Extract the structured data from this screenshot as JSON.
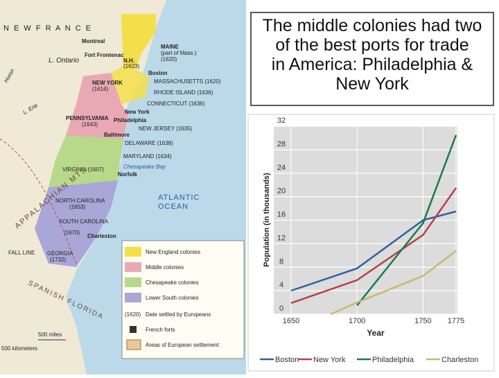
{
  "title": "The middle colonies had two of the best ports for trade in America: Philadelphia & New York",
  "map": {
    "labels": [
      "N E W   F R A N C E",
      "Montreal",
      "Fort Frontenac",
      "L. Ontario",
      "MAINE",
      "(part of Mass.)",
      "(1620)",
      "N.H.",
      "(1623)",
      "Boston",
      "MASSACHUSETTS (1620)",
      "NEW YORK",
      "(1614)",
      "RHODE ISLAND (1636)",
      "CONNECTICUT (1636)",
      "New York",
      "PENNSYLVANIA",
      "(1643)",
      "Philadelphia",
      "NEW JERSEY (1635)",
      "Baltimore",
      "DELAWARE (1638)",
      "MARYLAND (1634)",
      "VIRGINIA (1607)",
      "Chesapeake Bay",
      "Norfolk",
      "NORTH CAROLINA",
      "(1653)",
      "SOUTH CAROLINA",
      "(1670)",
      "Charleston",
      "GEORGIA",
      "(1732)",
      "ATLANTIC",
      "OCEAN",
      "APPALACHIAN MTS.",
      "SPANISH FLORIDA",
      "FALL LINE",
      "L. Erie",
      "Huron",
      "500 miles",
      "500 kilometers"
    ],
    "legend": [
      "New England colonies",
      "Middle colonies",
      "Chesapeake colonies",
      "Lower South colonies",
      "(1620)",
      "Date settled by Europeans",
      "French forts",
      "Areas of European settlement"
    ]
  },
  "chart_data": {
    "type": "line",
    "x_label": "Year",
    "y_label": "Population (in thousands)",
    "xlim": [
      1650,
      1775
    ],
    "xticks": [
      1650,
      1700,
      1750,
      1775
    ],
    "ylim": [
      0,
      32
    ],
    "yticks": [
      0,
      4,
      8,
      12,
      16,
      20,
      24,
      28,
      32
    ],
    "grid": true,
    "series": [
      {
        "name": "Boston",
        "color": "#2e5fa0",
        "x": [
          1650,
          1700,
          1750,
          1775
        ],
        "values": [
          4,
          7.8,
          16,
          17.5
        ]
      },
      {
        "name": "New York",
        "color": "#b5404a",
        "x": [
          1650,
          1700,
          1750,
          1775
        ],
        "values": [
          1.9,
          5.8,
          13.5,
          21.5
        ]
      },
      {
        "name": "Philadelphia",
        "color": "#1a7a4a",
        "x": [
          1700,
          1750,
          1775
        ],
        "values": [
          1.5,
          15.5,
          30.5
        ]
      },
      {
        "name": "Charleston",
        "color": "#c8b870",
        "x": [
          1680,
          1700,
          1750,
          1775
        ],
        "values": [
          0,
          2,
          6.5,
          10.8
        ]
      }
    ]
  }
}
